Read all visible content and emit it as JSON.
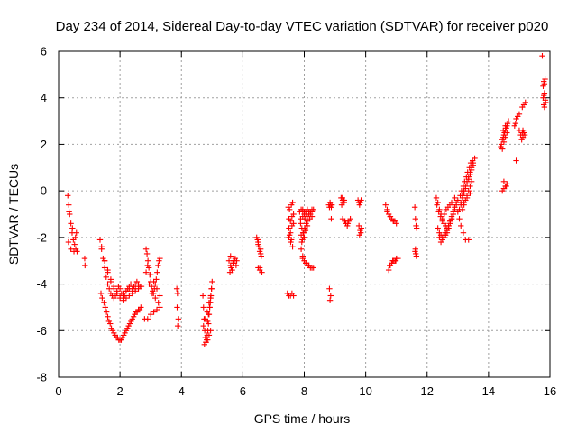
{
  "chart_data": {
    "type": "scatter",
    "title": "Day 234 of 2014, Sidereal Day-to-day VTEC variation (SDTVAR) for receiver p020",
    "xlabel": "GPS time / hours",
    "ylabel": "SDTVAR / TECUs",
    "xlim": [
      0,
      16
    ],
    "ylim": [
      -8,
      6
    ],
    "xticks": [
      "0",
      "2",
      "4",
      "6",
      "8",
      "10",
      "12",
      "14",
      "16"
    ],
    "yticks": [
      "-8",
      "-6",
      "-4",
      "-2",
      "0",
      "2",
      "4",
      "6"
    ],
    "grid": true,
    "marker": "+",
    "color": "#ff0000",
    "series": [
      {
        "name": "SDTVAR",
        "x": [
          0.3,
          0.33,
          0.36,
          0.4,
          0.44,
          0.48,
          0.52,
          0.56,
          0.6,
          0.32,
          0.4,
          0.5,
          0.58,
          0.34,
          0.45,
          0.55,
          0.85,
          0.86,
          1.35,
          1.4,
          1.45,
          1.5,
          1.55,
          1.6,
          1.65,
          1.7,
          1.75,
          1.8,
          1.85,
          1.9,
          1.95,
          2.0,
          2.05,
          2.1,
          2.15,
          2.2,
          2.25,
          2.3,
          2.35,
          2.4,
          2.45,
          2.5,
          2.55,
          2.6,
          2.65,
          1.4,
          1.5,
          1.6,
          1.7,
          1.8,
          1.9,
          2.0,
          2.1,
          2.2,
          2.3,
          2.4,
          2.5,
          2.6,
          1.5,
          1.6,
          1.7,
          1.8,
          1.9,
          2.0,
          2.1,
          2.2,
          2.3,
          2.4,
          2.5,
          2.6,
          2.7,
          1.38,
          1.42,
          1.48,
          1.52,
          1.56,
          1.6,
          1.64,
          1.68,
          1.72,
          1.76,
          1.8,
          1.84,
          1.88,
          1.92,
          1.96,
          2.0,
          2.04,
          2.08,
          2.12,
          2.16,
          2.2,
          2.24,
          2.28,
          2.32,
          2.36,
          2.4,
          2.44,
          2.48,
          2.52,
          2.56,
          2.6,
          2.64,
          2.68,
          2.85,
          2.88,
          2.91,
          2.94,
          2.97,
          3.0,
          3.03,
          3.06,
          3.09,
          3.12,
          3.15,
          3.18,
          3.21,
          3.24,
          3.27,
          3.3,
          2.9,
          3.0,
          3.1,
          3.2,
          3.3,
          2.85,
          2.95,
          3.05,
          3.15,
          3.25,
          2.8,
          2.9,
          3.0,
          3.1,
          3.2,
          3.3,
          3.85,
          3.87,
          3.86,
          3.9,
          3.88,
          4.7,
          4.72,
          4.74,
          4.76,
          4.78,
          4.8,
          4.82,
          4.84,
          4.86,
          4.88,
          4.9,
          4.92,
          4.94,
          4.96,
          4.98,
          5.0,
          4.75,
          4.8,
          4.85,
          4.9,
          4.95,
          4.72,
          4.78,
          4.84,
          4.9,
          4.96,
          4.85,
          4.88,
          4.92,
          4.95,
          4.98,
          5.55,
          5.6,
          5.65,
          5.7,
          5.75,
          5.8,
          5.58,
          5.62,
          5.68,
          5.72,
          5.78,
          5.6,
          5.7,
          5.65,
          6.45,
          6.5,
          6.55,
          6.6,
          6.48,
          6.52,
          6.58,
          6.5,
          6.55,
          6.62,
          6.5,
          6.58,
          6.55,
          7.45,
          7.5,
          7.55,
          7.6,
          7.65,
          7.48,
          7.52,
          7.58,
          7.62,
          7.5,
          7.55,
          7.6,
          7.65,
          7.5,
          7.55,
          7.6,
          7.65,
          7.5,
          7.56,
          7.62,
          7.52,
          7.58,
          7.85,
          7.9,
          7.95,
          8.0,
          8.05,
          8.1,
          8.15,
          8.2,
          8.25,
          8.3,
          7.88,
          7.95,
          8.02,
          8.1,
          8.18,
          8.25,
          7.9,
          7.95,
          8.0,
          8.05,
          8.1,
          8.15,
          8.2,
          8.25,
          8.3,
          7.95,
          8.05,
          8.15,
          8.25,
          7.88,
          7.92,
          7.96,
          8.0,
          8.04,
          8.08,
          7.9,
          7.94,
          7.98,
          8.02,
          8.06,
          7.92,
          7.98,
          8.04,
          8.1,
          7.95,
          8.0,
          8.05,
          8.1,
          8.15,
          8.2,
          8.25,
          8.8,
          8.82,
          8.84,
          8.86,
          8.88,
          8.9,
          8.82,
          8.86,
          8.84,
          8.88,
          9.2,
          9.25,
          9.3,
          9.22,
          9.28,
          9.24,
          9.26,
          9.3,
          9.25,
          9.32,
          9.35,
          9.4,
          9.45,
          9.5,
          9.42,
          9.75,
          9.78,
          9.8,
          9.82,
          9.85,
          9.78,
          9.82,
          9.8,
          9.84,
          9.86,
          10.65,
          10.7,
          10.75,
          10.8,
          10.85,
          10.9,
          10.95,
          11.0,
          10.7,
          10.8,
          10.9,
          10.75,
          10.8,
          10.85,
          10.9,
          10.95,
          11.0,
          11.05,
          10.78,
          10.88,
          10.98,
          11.6,
          11.62,
          11.64,
          11.66,
          11.61,
          11.63,
          11.65,
          11.62,
          12.3,
          12.35,
          12.4,
          12.45,
          12.5,
          12.55,
          12.6,
          12.65,
          12.7,
          12.75,
          12.8,
          12.85,
          12.9,
          12.95,
          13.0,
          12.35,
          12.4,
          12.45,
          12.5,
          12.55,
          12.6,
          12.65,
          12.7,
          12.75,
          12.8,
          12.85,
          12.9,
          12.32,
          12.38,
          12.44,
          12.5,
          12.56,
          12.62,
          12.68,
          12.74,
          12.8,
          12.4,
          12.45,
          12.5,
          12.55,
          12.6,
          12.65,
          12.7,
          12.75,
          12.8,
          12.85,
          13.05,
          13.1,
          13.15,
          13.2,
          13.25,
          13.3,
          13.35,
          13.4,
          13.45,
          13.5,
          13.55,
          13.1,
          13.15,
          13.2,
          13.25,
          13.3,
          13.35,
          13.4,
          13.45,
          13.5,
          13.08,
          13.12,
          13.18,
          13.22,
          13.28,
          13.32,
          13.38,
          13.42,
          13.48,
          13.15,
          13.2,
          13.25,
          13.3,
          13.35,
          13.4,
          13.45,
          13.2,
          13.3,
          13.4,
          12.9,
          12.95,
          13.0,
          13.05,
          13.1,
          13.18,
          13.25,
          13.35,
          14.4,
          14.45,
          14.5,
          14.55,
          14.6,
          14.42,
          14.48,
          14.52,
          14.58,
          14.45,
          14.5,
          14.55,
          14.6,
          14.62,
          14.48,
          14.55,
          14.65,
          14.45,
          14.5,
          14.55,
          14.6,
          14.5,
          14.58,
          14.85,
          14.9,
          14.95,
          15.0,
          14.88,
          15.05,
          15.1,
          15.12,
          15.15,
          15.08,
          15.12,
          15.18,
          15.1,
          15.15,
          15.2,
          14.9,
          15.0,
          15.75,
          15.78,
          15.8,
          15.82,
          15.85,
          15.78,
          15.82,
          15.8,
          15.84,
          15.86,
          15.8,
          15.82
        ],
        "y": [
          -0.2,
          -0.6,
          -1.0,
          -1.4,
          -1.8,
          -2.1,
          -2.3,
          -2.5,
          -2.6,
          -2.2,
          -2.5,
          -2.6,
          -1.8,
          -0.9,
          -1.6,
          -2.0,
          -2.9,
          -3.2,
          -2.1,
          -2.4,
          -2.9,
          -3.3,
          -3.7,
          -4.0,
          -4.2,
          -4.4,
          -4.5,
          -4.6,
          -4.5,
          -4.3,
          -4.1,
          -4.2,
          -4.4,
          -4.6,
          -4.5,
          -4.3,
          -4.2,
          -4.1,
          -4.0,
          -4.2,
          -4.1,
          -4.0,
          -3.9,
          -4.0,
          -4.1,
          -2.5,
          -3.0,
          -3.5,
          -3.9,
          -4.2,
          -4.4,
          -4.5,
          -4.4,
          -4.3,
          -4.2,
          -4.3,
          -4.2,
          -4.1,
          -3.0,
          -3.4,
          -3.8,
          -4.1,
          -4.4,
          -4.6,
          -4.7,
          -4.6,
          -4.5,
          -4.4,
          -4.3,
          -4.2,
          -4.1,
          -4.4,
          -4.6,
          -4.8,
          -5.0,
          -5.2,
          -5.4,
          -5.6,
          -5.7,
          -5.9,
          -6.0,
          -6.1,
          -6.2,
          -6.3,
          -6.3,
          -6.4,
          -6.4,
          -6.4,
          -6.3,
          -6.2,
          -6.1,
          -6.0,
          -5.9,
          -5.8,
          -5.7,
          -5.6,
          -5.5,
          -5.4,
          -5.3,
          -5.2,
          -5.2,
          -5.1,
          -5.1,
          -5.0,
          -2.5,
          -2.7,
          -3.0,
          -3.3,
          -3.6,
          -3.9,
          -4.1,
          -4.3,
          -4.4,
          -4.2,
          -4.0,
          -3.8,
          -3.5,
          -3.2,
          -3.0,
          -2.9,
          -3.2,
          -3.6,
          -3.9,
          -4.2,
          -4.5,
          -3.5,
          -4.0,
          -4.4,
          -4.6,
          -4.8,
          -5.5,
          -5.5,
          -5.3,
          -5.2,
          -5.1,
          -5.0,
          -4.2,
          -4.4,
          -5.0,
          -5.5,
          -5.8,
          -4.5,
          -5.0,
          -5.5,
          -6.0,
          -6.3,
          -6.5,
          -6.4,
          -6.2,
          -6.0,
          -5.7,
          -5.3,
          -5.0,
          -4.8,
          -4.5,
          -4.2,
          -3.9,
          -6.6,
          -6.5,
          -6.4,
          -6.2,
          -6.0,
          -5.8,
          -5.5,
          -5.2,
          -4.8,
          -4.5,
          -5.6,
          -5.3,
          -5.0,
          -4.6,
          -4.2,
          -3.0,
          -3.2,
          -3.4,
          -3.1,
          -2.9,
          -3.0,
          -3.5,
          -3.3,
          -3.1,
          -3.0,
          -3.2,
          -2.8,
          -3.0,
          -3.4,
          -2.0,
          -2.3,
          -2.6,
          -2.8,
          -2.1,
          -2.4,
          -2.7,
          -3.3,
          -3.4,
          -3.5,
          -2.2,
          -2.5,
          -3.3,
          -4.4,
          -4.5,
          -4.5,
          -4.4,
          -4.5,
          -0.7,
          -0.8,
          -0.6,
          -0.5,
          -1.2,
          -1.3,
          -1.1,
          -1.0,
          -1.6,
          -1.8,
          -1.5,
          -1.4,
          -2.0,
          -2.2,
          -2.4,
          -1.9,
          -2.1,
          -0.9,
          -0.8,
          -0.9,
          -1.0,
          -0.9,
          -0.8,
          -0.9,
          -1.0,
          -0.9,
          -0.8,
          -1.2,
          -1.1,
          -1.2,
          -1.3,
          -1.2,
          -1.1,
          -2.5,
          -2.8,
          -3.0,
          -3.1,
          -3.2,
          -3.2,
          -3.3,
          -3.3,
          -3.3,
          -2.9,
          -3.1,
          -3.2,
          -3.3,
          -1.4,
          -1.6,
          -1.8,
          -2.0,
          -1.7,
          -1.5,
          -1.9,
          -2.1,
          -1.8,
          -1.6,
          -1.4,
          -2.2,
          -2.0,
          -1.7,
          -1.5,
          -0.8,
          -0.9,
          -1.0,
          -1.1,
          -1.0,
          -0.9,
          -0.8,
          -0.6,
          -0.7,
          -0.5,
          -0.6,
          -0.7,
          -0.6,
          -4.2,
          -4.5,
          -4.7,
          -1.2,
          -0.3,
          -0.4,
          -0.5,
          -0.6,
          -0.4,
          -0.3,
          -0.5,
          -0.4,
          -1.2,
          -1.3,
          -1.4,
          -1.5,
          -1.3,
          -1.2,
          -1.4,
          -0.4,
          -0.5,
          -0.6,
          -0.5,
          -0.4,
          -1.5,
          -1.7,
          -1.9,
          -1.8,
          -1.6,
          -0.6,
          -0.8,
          -1.0,
          -1.1,
          -1.2,
          -1.3,
          -1.3,
          -1.4,
          -0.9,
          -1.1,
          -1.3,
          -3.4,
          -3.2,
          -3.1,
          -3.0,
          -3.0,
          -2.9,
          -2.9,
          -3.2,
          -3.0,
          -3.0,
          -0.7,
          -1.2,
          -1.5,
          -1.6,
          -2.6,
          -2.7,
          -2.8,
          -2.5,
          -0.3,
          -0.5,
          -0.8,
          -1.0,
          -1.2,
          -1.4,
          -1.5,
          -1.6,
          -1.5,
          -1.3,
          -1.1,
          -0.9,
          -0.7,
          -0.5,
          -0.4,
          -1.6,
          -1.8,
          -1.9,
          -2.0,
          -1.9,
          -1.8,
          -1.7,
          -1.5,
          -1.3,
          -1.2,
          -1.0,
          -0.8,
          -0.6,
          -0.9,
          -1.1,
          -1.3,
          -1.0,
          -0.8,
          -0.7,
          -0.6,
          -0.5,
          -2.0,
          -2.2,
          -2.1,
          -2.0,
          -1.9,
          -1.8,
          -1.6,
          -1.4,
          -1.2,
          -1.0,
          -0.8,
          -0.5,
          -0.2,
          0.0,
          0.2,
          0.4,
          0.6,
          0.8,
          1.0,
          1.2,
          1.4,
          -0.6,
          -0.3,
          -0.1,
          0.1,
          0.3,
          0.5,
          0.7,
          0.9,
          1.1,
          -0.2,
          0.0,
          0.2,
          0.4,
          0.6,
          0.8,
          1.0,
          1.2,
          1.3,
          -0.8,
          -0.6,
          -0.4,
          -0.2,
          0.0,
          0.2,
          0.4,
          -0.5,
          -0.3,
          -0.1,
          -0.3,
          -0.6,
          -0.9,
          -1.2,
          -1.5,
          -1.8,
          -2.1,
          -2.1,
          1.9,
          2.2,
          2.4,
          2.6,
          2.8,
          2.0,
          2.3,
          2.5,
          2.7,
          1.8,
          2.1,
          2.3,
          2.5,
          2.9,
          2.6,
          2.8,
          3.0,
          0.0,
          0.1,
          0.2,
          0.3,
          0.4,
          0.2,
          2.8,
          3.1,
          3.2,
          3.3,
          2.9,
          2.4,
          2.5,
          2.6,
          2.5,
          2.2,
          2.3,
          2.4,
          3.6,
          3.7,
          3.8,
          1.3,
          2.6,
          5.8,
          4.0,
          4.1,
          4.2,
          3.9,
          4.5,
          4.6,
          4.7,
          4.8,
          3.8,
          3.7,
          3.6
        ]
      }
    ]
  }
}
